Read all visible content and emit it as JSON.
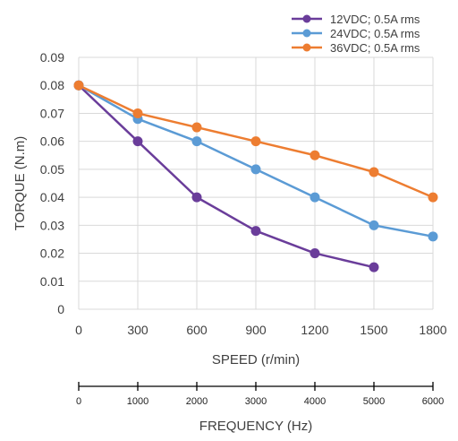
{
  "chart_data": {
    "type": "line",
    "xlabel": "SPEED (r/min)",
    "ylabel": "TORQUE (N.m)",
    "x": [
      0,
      300,
      600,
      900,
      1200,
      1500,
      1800
    ],
    "ylim": [
      0,
      0.09
    ],
    "yticks": [
      0,
      0.01,
      0.02,
      0.03,
      0.04,
      0.05,
      0.06,
      0.07,
      0.08,
      0.09
    ],
    "yticklabels": [
      "0",
      "0.01",
      "0.02",
      "0.03",
      "0.04",
      "0.05",
      "0.06",
      "0.07",
      "0.08",
      "0.09"
    ],
    "xticklabels": [
      "0",
      "300",
      "600",
      "900",
      "1200",
      "1500",
      "1800"
    ],
    "grid": true,
    "legend_position": "top-right",
    "series": [
      {
        "name": "12VDC; 0.5A rms",
        "color": "#6a3d9a",
        "points": [
          [
            0,
            0.08
          ],
          [
            300,
            0.06
          ],
          [
            600,
            0.04
          ],
          [
            900,
            0.028
          ],
          [
            1200,
            0.02
          ],
          [
            1500,
            0.015
          ]
        ]
      },
      {
        "name": "24VDC; 0.5A rms",
        "color": "#5b9bd5",
        "points": [
          [
            0,
            0.08
          ],
          [
            300,
            0.068
          ],
          [
            600,
            0.06
          ],
          [
            900,
            0.05
          ],
          [
            1200,
            0.04
          ],
          [
            1500,
            0.03
          ],
          [
            1800,
            0.026
          ]
        ]
      },
      {
        "name": "36VDC; 0.5A rms",
        "color": "#ed7d31",
        "points": [
          [
            0,
            0.08
          ],
          [
            300,
            0.07
          ],
          [
            600,
            0.065
          ],
          [
            900,
            0.06
          ],
          [
            1200,
            0.055
          ],
          [
            1500,
            0.049
          ],
          [
            1800,
            0.04
          ]
        ]
      }
    ],
    "secondary_axis": {
      "label": "FREQUENCY (Hz)",
      "ticks": [
        "0",
        "1000",
        "2000",
        "3000",
        "4000",
        "5000",
        "6000"
      ]
    }
  }
}
